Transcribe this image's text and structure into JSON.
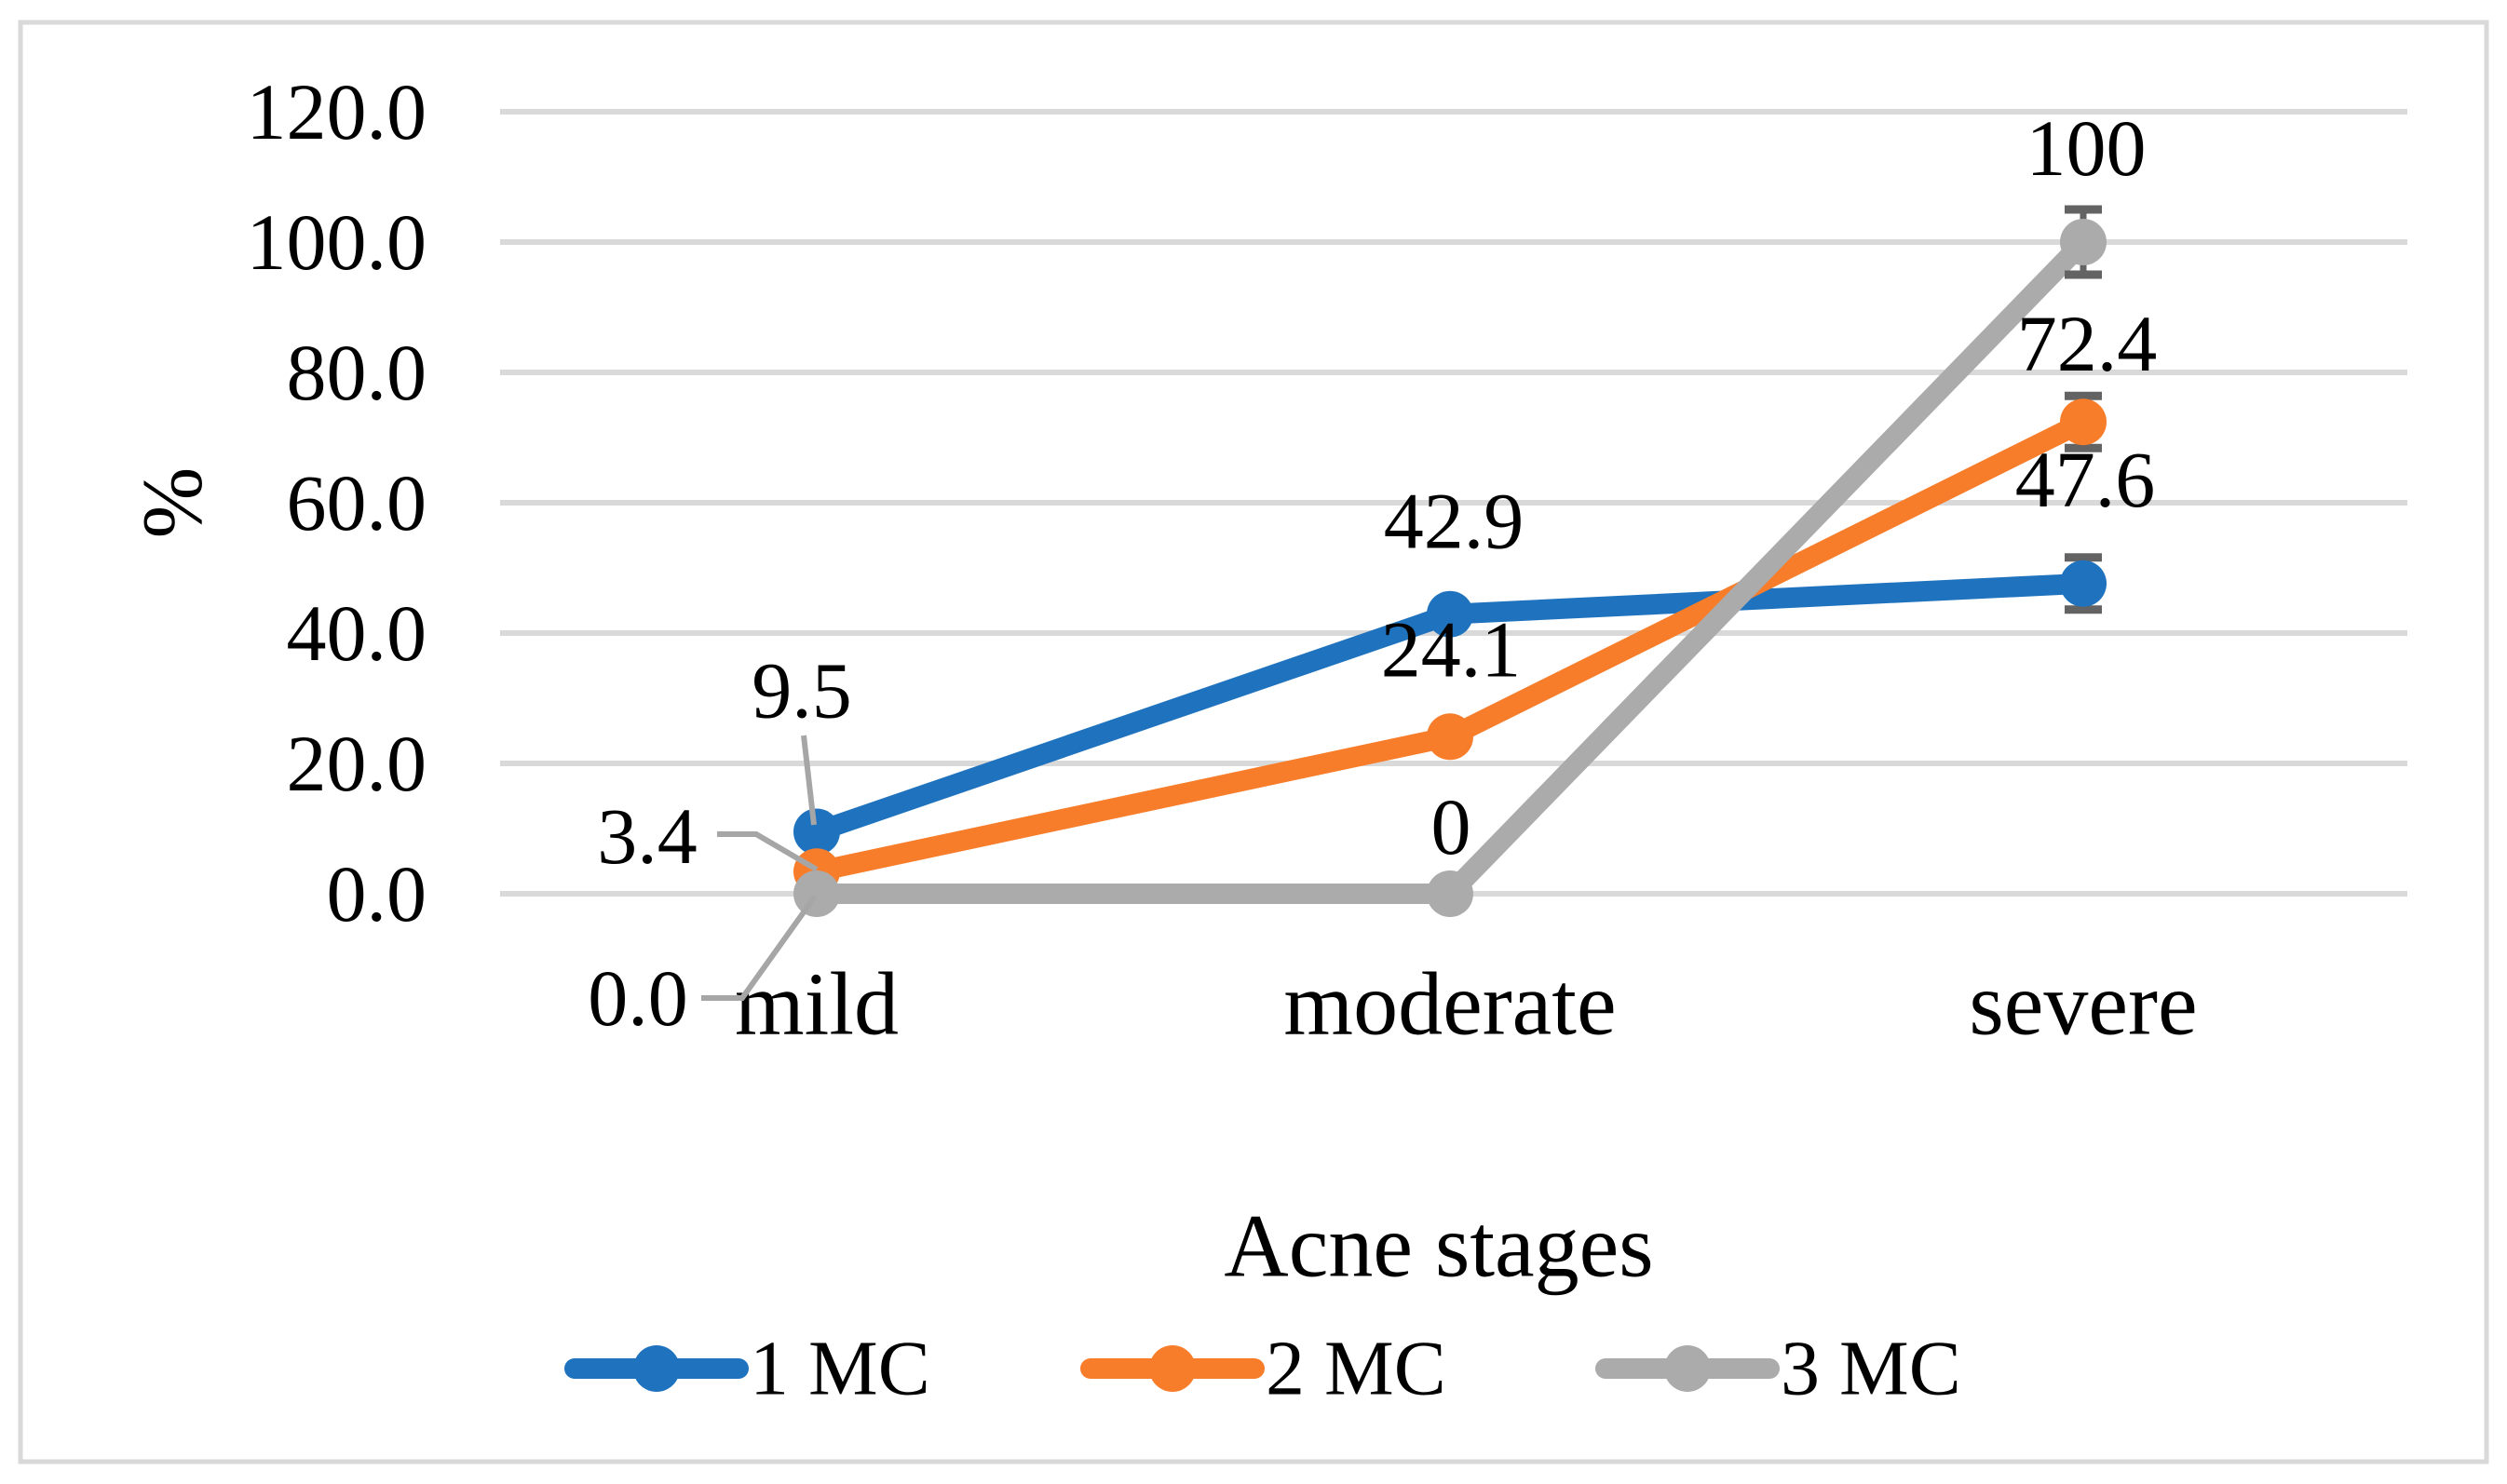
{
  "figure": {
    "background_color": "#ffffff",
    "border_color": "#d9d9d9"
  },
  "chart_data": {
    "type": "line",
    "title": "",
    "xlabel": "Acne stages",
    "ylabel": "%",
    "categories": [
      "mild",
      "moderate",
      "severe"
    ],
    "series": [
      {
        "name": "1 MC",
        "color": "#1f73be",
        "values": [
          9.5,
          42.9,
          47.6
        ],
        "point_labels": [
          "9.5",
          "42.9",
          "47.6"
        ],
        "error_bars": [
          0,
          0,
          4
        ]
      },
      {
        "name": "2 MC",
        "color": "#f87d2a",
        "values": [
          3.4,
          24.1,
          72.4
        ],
        "point_labels": [
          "3.4",
          "24.1",
          "72.4"
        ],
        "error_bars": [
          0,
          0,
          4
        ]
      },
      {
        "name": "3 MC",
        "color": "#ababab",
        "values": [
          0.0,
          0,
          100
        ],
        "point_labels": [
          "0.0",
          "0",
          "100"
        ],
        "error_bars": [
          0,
          0,
          5
        ]
      }
    ],
    "ylim": [
      0,
      120
    ],
    "ytick_step": 20,
    "ytick_labels": [
      "0.0",
      "20.0",
      "40.0",
      "60.0",
      "80.0",
      "100.0",
      "120.0"
    ],
    "grid": true,
    "gridline_color": "#d9d9d9",
    "error_bar_color": "#636363",
    "leader_line_color": "#a6a6a6",
    "legend_position": "bottom",
    "legend_entries": [
      "1 MC",
      "2 MC",
      "3 MC"
    ]
  }
}
